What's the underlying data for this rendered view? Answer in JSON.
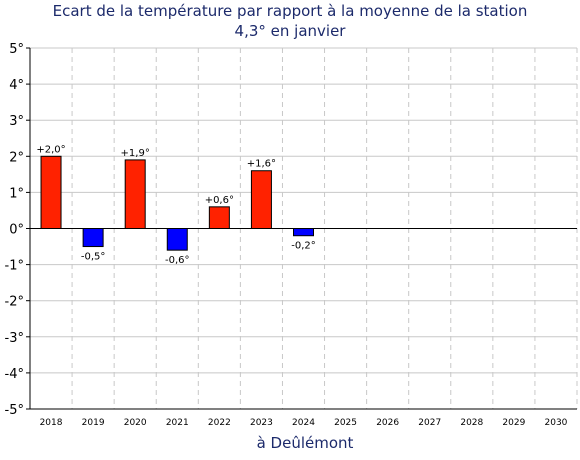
{
  "header": {
    "title_line1": "Ecart de la température par rapport à la moyenne de la station",
    "title_line2": "4,3° en janvier"
  },
  "footer": {
    "location": "à Deûlémont"
  },
  "colors": {
    "positive": "#ff2200",
    "negative": "#0000ff",
    "text": "#1c2a6b",
    "grid": "#c8c8c8"
  },
  "chart_data": {
    "type": "bar",
    "title": "Ecart de la température par rapport à la moyenne de la station 4,3° en janvier",
    "xlabel": "à Deûlémont",
    "ylabel": "",
    "categories": [
      "2018",
      "2019",
      "2020",
      "2021",
      "2022",
      "2023",
      "2024",
      "2025",
      "2026",
      "2027",
      "2028",
      "2029",
      "2030"
    ],
    "values": [
      2.0,
      -0.5,
      1.9,
      -0.6,
      0.6,
      1.6,
      -0.2,
      null,
      null,
      null,
      null,
      null,
      null
    ],
    "data_labels": [
      "+2,0°",
      "-0,5°",
      "+1,9°",
      "-0,6°",
      "+0,6°",
      "+1,6°",
      "-0,2°",
      "",
      "",
      "",
      "",
      "",
      ""
    ],
    "y_ticks": [
      "5°",
      "4°",
      "3°",
      "2°",
      "1°",
      "0°",
      "-1°",
      "-2°",
      "-3°",
      "-4°",
      "-5°"
    ],
    "ylim": [
      -5,
      5
    ],
    "grid": true
  }
}
